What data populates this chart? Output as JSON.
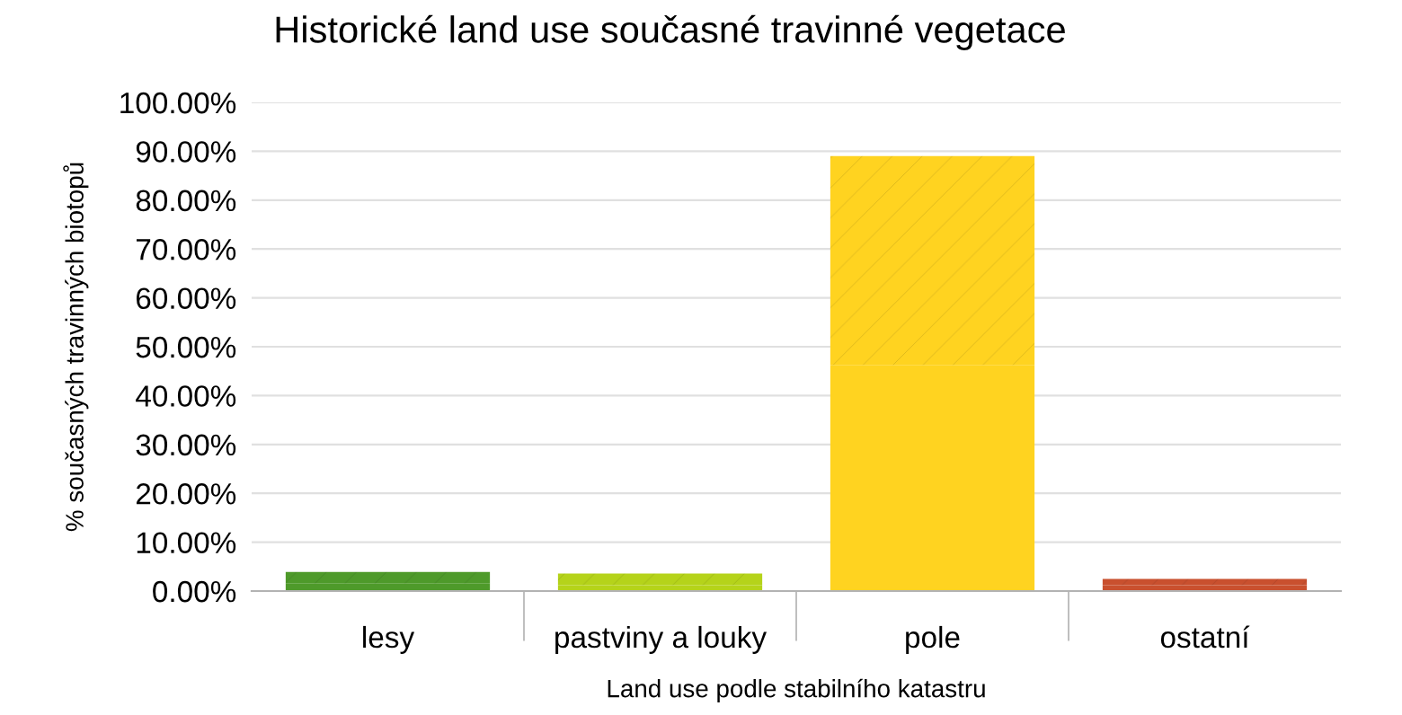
{
  "chart_data": {
    "type": "bar",
    "title": "Historické land use současné travinné vegetace",
    "xlabel": "Land use podle stabilního katastru",
    "ylabel": "% současných travinných biotopů",
    "categories": [
      "lesy",
      "pastviny a louky",
      "pole",
      "ostatní"
    ],
    "stacked": true,
    "series": [
      {
        "colors": [
          "#4e9a2a",
          "#b5d31a",
          "#ffd320",
          "#c9502e"
        ],
        "values": [
          1.5,
          1.2,
          46.3,
          1.2
        ]
      },
      {
        "colors": [
          "#4e9a2a",
          "#b5d31a",
          "#ffd320",
          "#c9502e"
        ],
        "values": [
          2.4,
          2.4,
          42.7,
          1.3
        ]
      }
    ],
    "ylim": [
      0,
      100
    ],
    "yticks": [
      {
        "value": 0,
        "label": "0.00%"
      },
      {
        "value": 10,
        "label": "10.00%"
      },
      {
        "value": 20,
        "label": "20.00%"
      },
      {
        "value": 30,
        "label": "30.00%"
      },
      {
        "value": 40,
        "label": "40.00%"
      },
      {
        "value": 50,
        "label": "50.00%"
      },
      {
        "value": 60,
        "label": "60.00%"
      },
      {
        "value": 70,
        "label": "70.00%"
      },
      {
        "value": 80,
        "label": "80.00%"
      },
      {
        "value": 90,
        "label": "90.00%"
      },
      {
        "value": 100,
        "label": "100.00%"
      }
    ],
    "grid": "y"
  }
}
